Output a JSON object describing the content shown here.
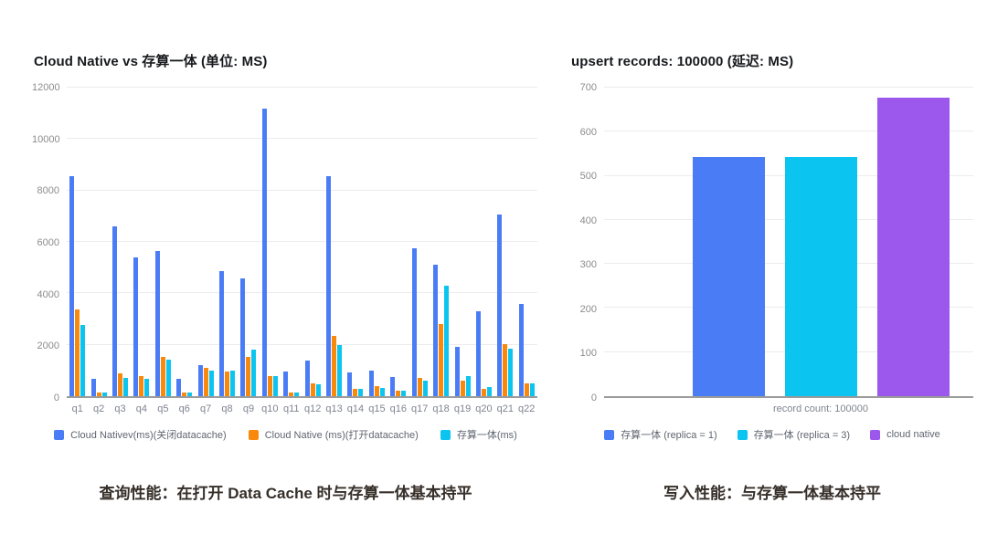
{
  "chart_data": [
    {
      "type": "bar",
      "title": "Cloud Native vs 存算一体 (单位: MS)",
      "caption": "查询性能：在打开 Data Cache 时与存算一体基本持平",
      "categories": [
        "q1",
        "q2",
        "q3",
        "q4",
        "q5",
        "q6",
        "q7",
        "q8",
        "q9",
        "q10",
        "q11",
        "q12",
        "q13",
        "q14",
        "q15",
        "q16",
        "q17",
        "q18",
        "q19",
        "q20",
        "q21",
        "q22"
      ],
      "series": [
        {
          "name": "Cloud Nativev(ms)(关闭datacache)",
          "color": "#4A7CF5",
          "values": [
            8550,
            670,
            6600,
            5400,
            5650,
            670,
            1200,
            4880,
            4570,
            11200,
            950,
            1400,
            8550,
            930,
            1000,
            760,
            5750,
            5100,
            1900,
            3310,
            7050,
            3600
          ]
        },
        {
          "name": "Cloud Native (ms)(打开datacache)",
          "color": "#F8890D",
          "values": [
            3380,
            140,
            900,
            790,
            1520,
            140,
            1090,
            950,
            1540,
            770,
            140,
            500,
            2330,
            290,
            400,
            220,
            710,
            2790,
            590,
            290,
            2040,
            500
          ]
        },
        {
          "name": "存算一体(ms)",
          "color": "#0BC5F0",
          "values": [
            2780,
            140,
            720,
            670,
            1420,
            140,
            1010,
            1000,
            1800,
            770,
            130,
            460,
            2000,
            290,
            320,
            200,
            620,
            4300,
            790,
            360,
            1860,
            500
          ]
        }
      ],
      "ylim": [
        0,
        12000
      ],
      "ytick_step": 2000,
      "grid": true,
      "legend_position": "bottom"
    },
    {
      "type": "bar",
      "title": "upsert records: 100000 (延迟: MS)",
      "caption": "写入性能：与存算一体基本持平",
      "categories": [
        "record count: 100000"
      ],
      "series": [
        {
          "name": "存算一体 (replica = 1)",
          "color": "#4A7CF5",
          "values": [
            543
          ]
        },
        {
          "name": "存算一体 (replica = 3)",
          "color": "#0BC5F0",
          "values": [
            542
          ]
        },
        {
          "name": "cloud native",
          "color": "#9C57EC",
          "values": [
            678
          ]
        }
      ],
      "ylim": [
        0,
        700
      ],
      "ytick_step": 100,
      "grid": true,
      "legend_position": "bottom"
    }
  ]
}
